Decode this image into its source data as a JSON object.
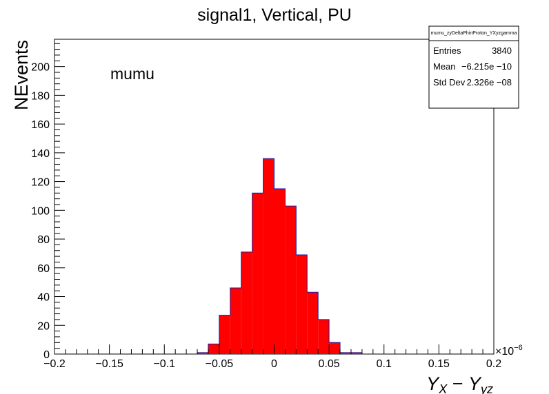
{
  "chart_data": {
    "type": "bar",
    "title": "signal1, Vertical, PU",
    "xlabel": "Y_X - Y_γz",
    "xlabel_parts": {
      "main1": "Y",
      "sub1": "X",
      "minus": " − ",
      "main2": "Y",
      "sub2": "γz"
    },
    "ylabel": "NEvents",
    "annotation": "mumu",
    "x_exponent": {
      "base": "×10",
      "power": "−6"
    },
    "xlim": [
      -0.2,
      0.2
    ],
    "ylim": [
      0,
      219
    ],
    "x_ticks": [
      -0.2,
      -0.15,
      -0.1,
      -0.05,
      0,
      0.05,
      0.1,
      0.15,
      0.2
    ],
    "x_tick_labels": [
      "−0.2",
      "−0.15",
      "−0.1",
      "−0.05",
      "0",
      "0.05",
      "0.1",
      "0.15",
      "0.2"
    ],
    "y_ticks": [
      0,
      20,
      40,
      60,
      80,
      100,
      120,
      140,
      160,
      180,
      200
    ],
    "y_tick_labels": [
      "0",
      "20",
      "40",
      "60",
      "80",
      "100",
      "120",
      "140",
      "160",
      "180",
      "200"
    ],
    "bin_edges": [
      -0.07,
      -0.06,
      -0.05,
      -0.04,
      -0.03,
      -0.02,
      -0.01,
      0.0,
      0.01,
      0.02,
      0.03,
      0.04,
      0.05,
      0.06,
      0.07,
      0.08
    ],
    "values": [
      1,
      7,
      27,
      46,
      71,
      112,
      136,
      115,
      103,
      69,
      43,
      24,
      8,
      1,
      1
    ],
    "fill_color": "#ff0000",
    "line_color": "#1a1aa6",
    "stats_box": {
      "title": "mumu_zyDeltaPhinProton_YXyzgamma",
      "rows": [
        {
          "label": "Entries",
          "value": "3840"
        },
        {
          "label": "Mean",
          "value": "−6.215e −10"
        },
        {
          "label": "Std Dev",
          "value": "2.326e −08"
        }
      ]
    }
  }
}
